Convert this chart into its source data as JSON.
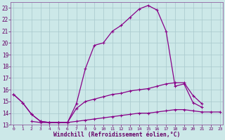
{
  "xlabel": "Windchill (Refroidissement éolien,°C)",
  "bg_color": "#cce8e8",
  "grid_color": "#a8c8cc",
  "line_color": "#880088",
  "hours": [
    0,
    1,
    2,
    3,
    4,
    5,
    6,
    7,
    8,
    9,
    10,
    11,
    12,
    13,
    14,
    15,
    16,
    17,
    18,
    19,
    20,
    21,
    22,
    23
  ],
  "line1": [
    15.6,
    14.9,
    13.9,
    13.3,
    13.2,
    13.2,
    13.2,
    14.8,
    17.8,
    19.8,
    20.0,
    21.0,
    21.5,
    22.2,
    22.9,
    23.2,
    22.8,
    21.0,
    16.3,
    16.5,
    14.9,
    14.5,
    null,
    null
  ],
  "line2": [
    15.6,
    14.9,
    13.9,
    13.3,
    13.2,
    13.2,
    13.2,
    14.4,
    15.0,
    15.2,
    15.4,
    15.6,
    15.7,
    15.9,
    16.0,
    16.1,
    16.3,
    16.5,
    16.6,
    16.6,
    15.5,
    14.8,
    null,
    null
  ],
  "line3": [
    null,
    null,
    13.3,
    13.2,
    13.2,
    13.2,
    13.2,
    13.3,
    13.4,
    13.5,
    13.6,
    13.7,
    13.8,
    13.9,
    14.0,
    14.0,
    14.1,
    14.2,
    14.3,
    14.3,
    14.2,
    14.1,
    14.1,
    14.1
  ],
  "ylim": [
    13,
    23.5
  ],
  "xlim": [
    -0.3,
    23.3
  ],
  "yticks": [
    13,
    14,
    15,
    16,
    17,
    18,
    19,
    20,
    21,
    22,
    23
  ],
  "xticks": [
    0,
    1,
    2,
    3,
    4,
    5,
    6,
    7,
    8,
    9,
    10,
    11,
    12,
    13,
    14,
    15,
    16,
    17,
    18,
    19,
    20,
    21,
    22,
    23
  ]
}
